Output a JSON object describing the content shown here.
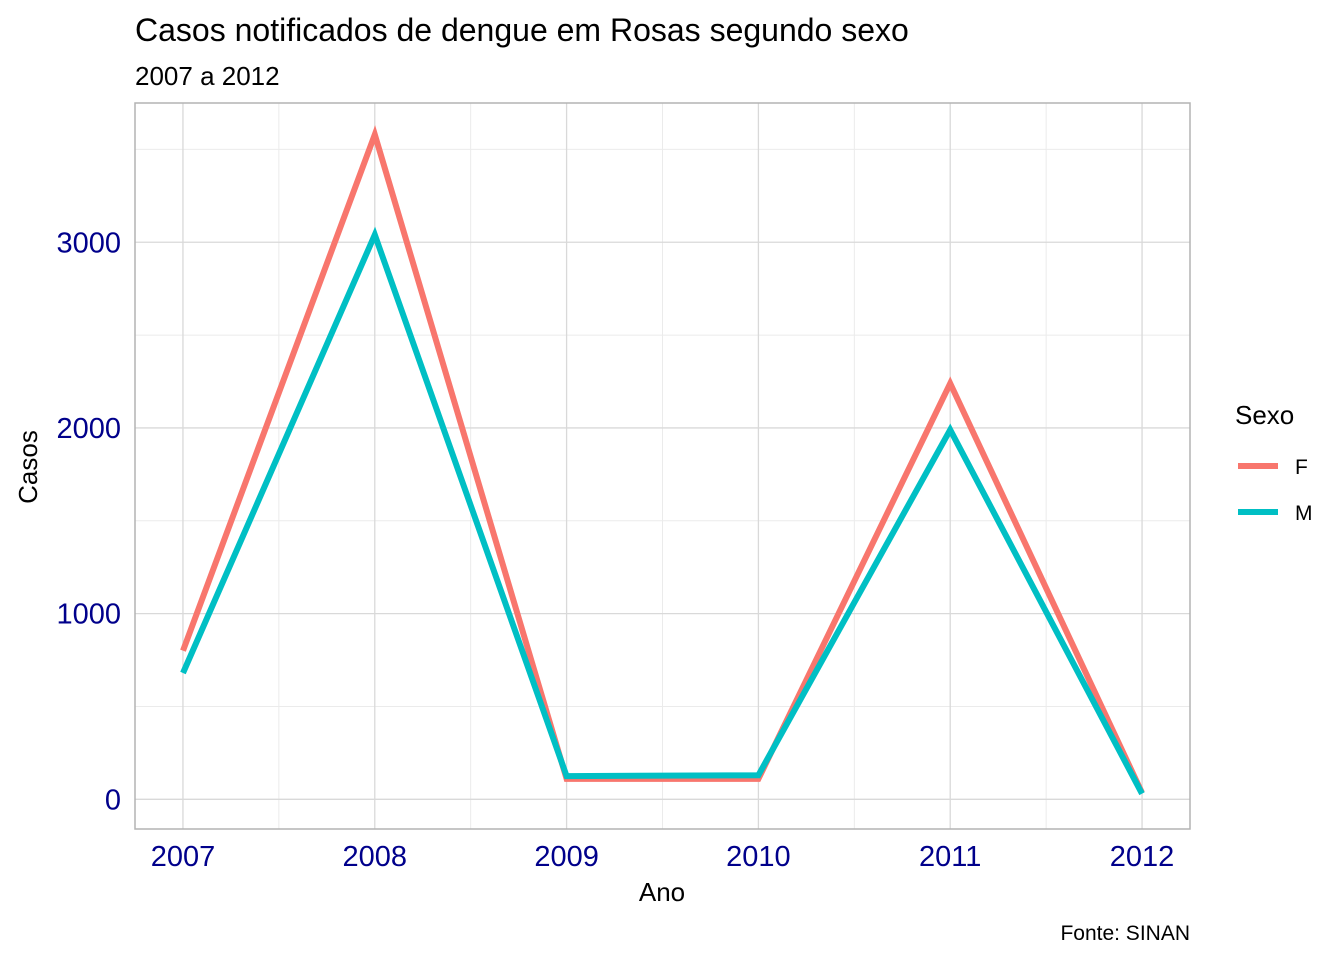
{
  "chart_data": {
    "type": "line",
    "title": "Casos notificados de dengue em Rosas segundo sexo",
    "subtitle": "2007 a 2012",
    "xlabel": "Ano",
    "ylabel": "Casos",
    "caption": "Fonte: SINAN",
    "x": [
      2007,
      2008,
      2009,
      2010,
      2011,
      2012
    ],
    "x_tick_labels": [
      "2007",
      "2008",
      "2009",
      "2010",
      "2011",
      "2012"
    ],
    "y_ticks": [
      0,
      1000,
      2000,
      3000
    ],
    "y_tick_labels": [
      "0",
      "1000",
      "2000",
      "3000"
    ],
    "xlim": [
      2006.75,
      2012.25
    ],
    "ylim": [
      -160,
      3750
    ],
    "grid": true,
    "legend": {
      "title": "Sexo",
      "position": "right"
    },
    "tick_color": "#00008B",
    "series": [
      {
        "name": "F",
        "color": "#F8766D",
        "values": [
          800,
          3580,
          110,
          110,
          2240,
          35
        ]
      },
      {
        "name": "M",
        "color": "#00BFC4",
        "values": [
          680,
          3040,
          125,
          130,
          1990,
          30
        ]
      }
    ]
  }
}
